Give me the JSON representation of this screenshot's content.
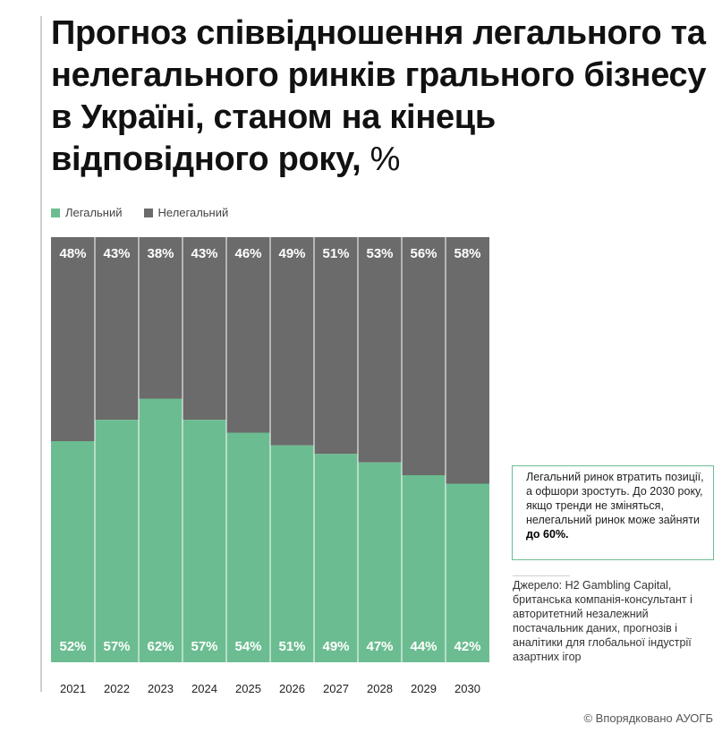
{
  "title": {
    "main": "Прогноз співвідношення легального та нелегального ринків грального бізнесу в Україні, станом на кінець відповідного року,",
    "unit": "%"
  },
  "legend": {
    "legal": "Легальний",
    "illegal": "Нелегальний"
  },
  "colors": {
    "legal": "#6bbd91",
    "illegal": "#6b6b6b",
    "label": "#ffffff"
  },
  "callout": {
    "text": "Легальний ринок втратить позиції, а офшори зростуть. До 2030 року, якщо тренди не зміняться, нелегальний ринок може зайняти",
    "highlight": "до 60%."
  },
  "source": "Джерело: H2 Gambling Capital, британська компанія-консультант і авторитетний незалежний постачальник даних, прогнозів і аналітики для глобальної індустрії азартних ігор",
  "credit": "© Впорядковано АУОГБ",
  "chart_data": {
    "type": "bar",
    "stacked": "100%",
    "categories": [
      "2021",
      "2022",
      "2023",
      "2024",
      "2025",
      "2026",
      "2027",
      "2028",
      "2029",
      "2030"
    ],
    "series": [
      {
        "name": "Легальний",
        "values": [
          52,
          57,
          62,
          57,
          54,
          51,
          49,
          47,
          44,
          42
        ],
        "labels": [
          "52%",
          "57%",
          "62%",
          "57%",
          "54%",
          "51%",
          "49%",
          "47%",
          "44%",
          "42%"
        ]
      },
      {
        "name": "Нелегальний",
        "values": [
          48,
          43,
          38,
          43,
          46,
          49,
          51,
          53,
          56,
          58
        ],
        "labels": [
          "48%",
          "43%",
          "38%",
          "43%",
          "46%",
          "49%",
          "51%",
          "53%",
          "56%",
          "58%"
        ]
      }
    ],
    "ylim": [
      0,
      100
    ],
    "legend_position": "top-left",
    "grid": false
  }
}
